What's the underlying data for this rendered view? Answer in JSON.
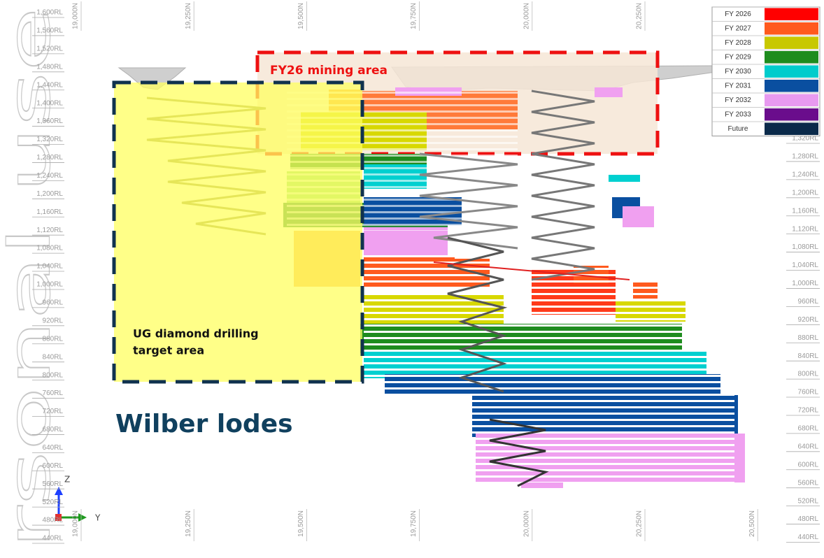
{
  "watermark": "rsonal use",
  "rl_labels_left": [
    "1,600RL",
    "1,560RL",
    "1,520RL",
    "1,480RL",
    "1,440RL",
    "1,400RL",
    "1,360RL",
    "1,320RL",
    "1,280RL",
    "1,240RL",
    "1,200RL",
    "1,160RL",
    "1,120RL",
    "1,080RL",
    "1,040RL",
    "1,000RL",
    "960RL",
    "920RL",
    "880RL",
    "840RL",
    "800RL",
    "760RL",
    "720RL",
    "680RL",
    "640RL",
    "600RL",
    "560RL",
    "520RL",
    "480RL",
    "440RL"
  ],
  "rl_labels_right": [
    "1,320RL",
    "1,280RL",
    "1,240RL",
    "1,200RL",
    "1,160RL",
    "1,120RL",
    "1,080RL",
    "1,040RL",
    "1,000RL",
    "960RL",
    "920RL",
    "880RL",
    "840RL",
    "800RL",
    "760RL",
    "720RL",
    "680RL",
    "640RL",
    "600RL",
    "560RL",
    "520RL",
    "480RL",
    "440RL"
  ],
  "northing_labels_top": [
    "19,000N",
    "19,250N",
    "19,500N",
    "19,750N",
    "20,000N",
    "20,250N"
  ],
  "northing_labels_bottom": [
    "19,000N",
    "19,250N",
    "19,500N",
    "19,750N",
    "20,000N",
    "20,250N",
    "20,500N"
  ],
  "legend": [
    {
      "label": "FY 2026",
      "color": "#ff0000"
    },
    {
      "label": "FY 2027",
      "color": "#ff5a1e"
    },
    {
      "label": "FY 2028",
      "color": "#c8c800"
    },
    {
      "label": "FY 2029",
      "color": "#1e8c1e"
    },
    {
      "label": "FY 2030",
      "color": "#00cccc"
    },
    {
      "label": "FY 2031",
      "color": "#0a4fa0"
    },
    {
      "label": "FY 2032",
      "color": "#e89af0"
    },
    {
      "label": "FY 2033",
      "color": "#6a0d8c"
    },
    {
      "label": "Future",
      "color": "#0a2a4a"
    }
  ],
  "annotations": {
    "mining_area": "FY26 mining area",
    "drilling_target": [
      "UG diamond drilling",
      "target area"
    ],
    "lode_name": "Wilber lodes"
  },
  "axis_triad": {
    "z": "Z",
    "y": "Y"
  }
}
